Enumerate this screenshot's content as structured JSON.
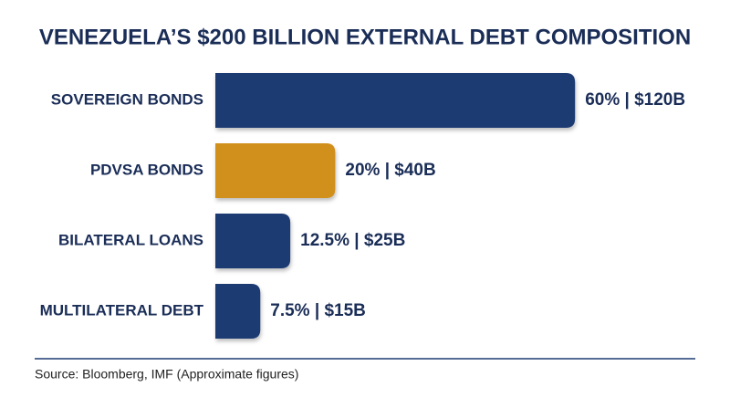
{
  "chart_data": {
    "type": "bar",
    "orientation": "horizontal",
    "title": "VENEZUELA’S $200 BILLION EXTERNAL DEBT COMPOSITION",
    "categories": [
      "SOVEREIGN BONDS",
      "PDVSA BONDS",
      "BILATERAL LOANS",
      "MULTILATERAL DEBT"
    ],
    "values": [
      60,
      20,
      12.5,
      7.5
    ],
    "value_labels": [
      "60% | $120B",
      "20% | $40B",
      "12.5% | $25B",
      "7.5% | $15B"
    ],
    "colors": [
      "#1f3b73",
      "#d18f1c",
      "#1f3b73",
      "#1f3b73"
    ],
    "source": "Source: Bloomberg, IMF (Approximate figures)"
  }
}
